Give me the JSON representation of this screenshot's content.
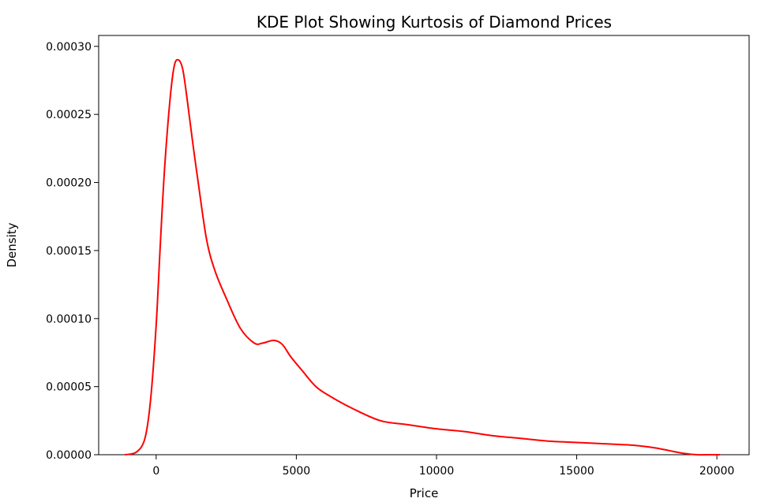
{
  "chart_data": {
    "type": "line",
    "title": "KDE Plot Showing Kurtosis of Diamond Prices",
    "xlabel": "Price",
    "ylabel": "Density",
    "xlim": [
      -2050,
      21150
    ],
    "ylim": [
      0,
      0.000308
    ],
    "xticks": [
      0,
      5000,
      10000,
      15000,
      20000
    ],
    "xtick_labels": [
      "0",
      "5000",
      "10000",
      "15000",
      "20000"
    ],
    "yticks": [
      0,
      5e-05,
      0.0001,
      0.00015,
      0.0002,
      0.00025,
      0.0003
    ],
    "ytick_labels": [
      "0.00000",
      "0.00005",
      "0.00010",
      "0.00015",
      "0.00020",
      "0.00025",
      "0.00030"
    ],
    "grid": false,
    "legend": "none",
    "series": [
      {
        "color": "#ff0000",
        "x": [
          -1100,
          -700,
          -400,
          -200,
          0,
          150,
          300,
          500,
          650,
          800,
          950,
          1100,
          1300,
          1500,
          1800,
          2100,
          2500,
          3000,
          3500,
          3800,
          4200,
          4500,
          4800,
          5200,
          5700,
          6200,
          7000,
          8000,
          9000,
          10000,
          11000,
          12000,
          13000,
          14000,
          15000,
          16000,
          17000,
          17800,
          18300,
          18800,
          19300,
          19800,
          20100
        ],
        "y": [
          0,
          2e-06,
          1.2e-05,
          4e-05,
          9.5e-05,
          0.000155,
          0.00021,
          0.000262,
          0.000286,
          0.00029,
          0.000283,
          0.000262,
          0.00023,
          0.0002,
          0.000158,
          0.000135,
          0.000115,
          9.3e-05,
          8.2e-05,
          8.2e-05,
          8.4e-05,
          8.1e-05,
          7.2e-05,
          6.2e-05,
          5e-05,
          4.3e-05,
          3.4e-05,
          2.5e-05,
          2.2e-05,
          1.9e-05,
          1.7e-05,
          1.4e-05,
          1.2e-05,
          1e-05,
          9e-06,
          8e-06,
          7e-06,
          5e-06,
          3e-06,
          1e-06,
          0,
          0,
          0
        ]
      }
    ]
  }
}
